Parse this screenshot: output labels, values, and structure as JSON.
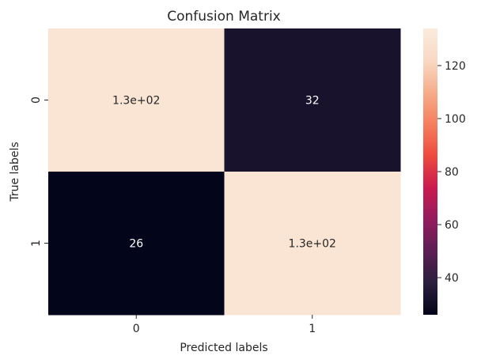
{
  "chart_data": {
    "type": "heatmap",
    "title": "Confusion Matrix",
    "xlabel": "Predicted labels",
    "ylabel": "True labels",
    "x_categories": [
      "0",
      "1"
    ],
    "y_categories": [
      "0",
      "1"
    ],
    "values": [
      [
        130,
        32
      ],
      [
        26,
        130
      ]
    ],
    "annotations": [
      [
        "1.3e+02",
        "32"
      ],
      [
        "26",
        "1.3e+02"
      ]
    ],
    "colorbar": {
      "range": [
        26,
        134
      ],
      "ticks": [
        40,
        60,
        80,
        100,
        120
      ],
      "tick_labels": [
        "40",
        "60",
        "80",
        "100",
        "120"
      ]
    },
    "colormap": [
      "#03051a",
      "#2c1e3e",
      "#5c1f52",
      "#931b5e",
      "#cb1b4f",
      "#ee4a3e",
      "#f57f5e",
      "#f6ad8b",
      "#f9d9c4",
      "#faebdd"
    ],
    "annotation_colors": {
      "dark_text": "#262626",
      "light_text": "#ffffff"
    }
  }
}
